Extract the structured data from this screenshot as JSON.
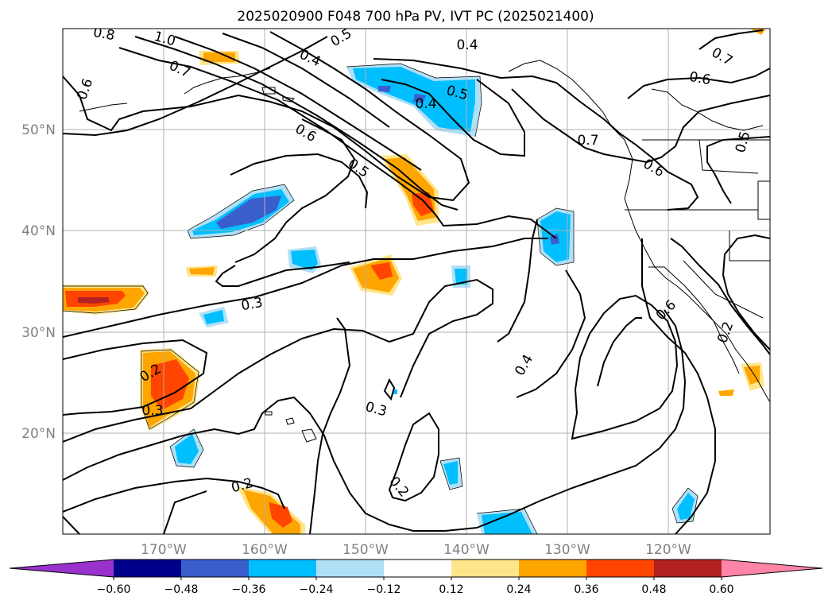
{
  "title": "2025020900 F048 700 hPa PV, IVT PC (2025021400)",
  "lat_labels": [
    "50°N",
    "40°N",
    "30°N",
    "20°N"
  ],
  "lon_labels": [
    "170°W",
    "160°W",
    "150°W",
    "140°W",
    "130°W",
    "120°W"
  ],
  "contour_labels": [
    "0.8",
    "1.0",
    "0.7",
    "0.6",
    "0.5",
    "0.4",
    "0.5",
    "0.4",
    "0.4",
    "0.7",
    "0.6",
    "0.5",
    "0.6",
    "0.5",
    "0.7",
    "0.6",
    "0.3",
    "0.2",
    "0.3",
    "0.3",
    "0.4",
    "0.2",
    "0.2",
    "0.6",
    "0.2"
  ],
  "colorbar": {
    "ticks": [
      "−0.60",
      "−0.48",
      "−0.36",
      "−0.24",
      "−0.12",
      "0.12",
      "0.24",
      "0.36",
      "0.48",
      "0.60"
    ],
    "colors": [
      "#9932cc",
      "#00008b",
      "#3a5fcd",
      "#00bfff",
      "#b0e0f6",
      "#ffffff",
      "#ffe58a",
      "#ffa500",
      "#ff4500",
      "#b22222",
      "#ff85a8"
    ]
  },
  "map": {
    "projection": "PlateCarree",
    "lon_range": [
      "180°W",
      "110°W"
    ],
    "lat_range": [
      "10°N",
      "60°N"
    ],
    "grid": true,
    "shading": "IVT PC (filled)",
    "contours": "700 hPa PV (black lines)"
  }
}
